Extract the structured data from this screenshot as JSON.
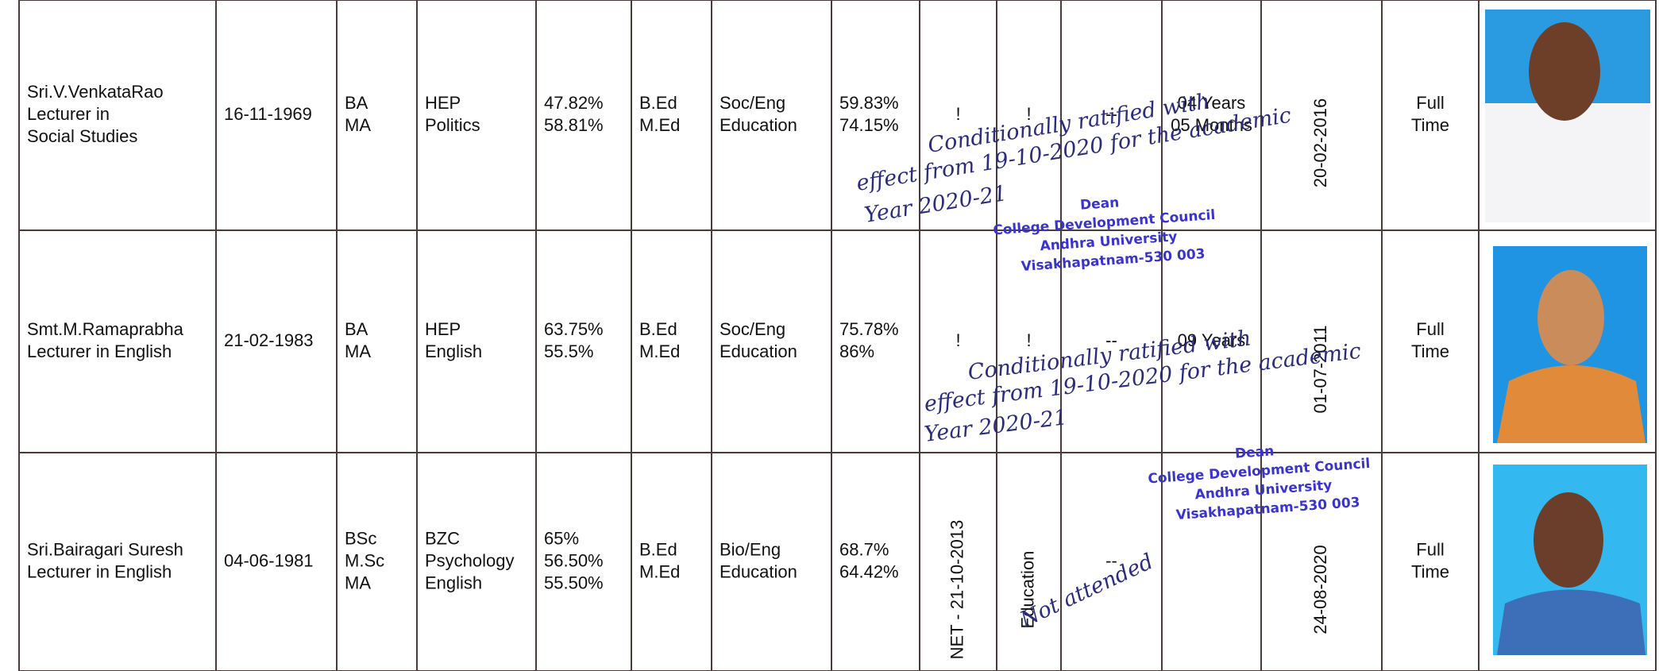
{
  "table": {
    "rows": [
      {
        "name": [
          "Sri.V.VenkataRao",
          "Lecturer in",
          "Social Studies"
        ],
        "dob": "16-11-1969",
        "degrees": [
          "BA",
          "MA"
        ],
        "subjects": [
          "HEP",
          "Politics"
        ],
        "percentages": [
          "47.82%",
          "58.81%"
        ],
        "training": [
          "B.Ed",
          "M.Ed"
        ],
        "methodology": [
          "Soc/Eng",
          "Education"
        ],
        "training_percentages": [
          "59.83%",
          "74.15%"
        ],
        "qualification": "!",
        "subject": "!",
        "remark": "--",
        "experience": [
          "04 Years",
          "05 Months"
        ],
        "date": "20-02-2016",
        "status": [
          "Full",
          "Time"
        ]
      },
      {
        "name": [
          "Smt.M.Ramaprabha",
          "Lecturer in English"
        ],
        "dob": "21-02-1983",
        "degrees": [
          "BA",
          "MA"
        ],
        "subjects": [
          "HEP",
          "English"
        ],
        "percentages": [
          "63.75%",
          "55.5%"
        ],
        "training": [
          "B.Ed",
          "M.Ed"
        ],
        "methodology": [
          "Soc/Eng",
          "Education"
        ],
        "training_percentages": [
          "75.78%",
          "86%"
        ],
        "qualification": "!",
        "subject": "!",
        "remark": "--",
        "experience": [
          "09 Years"
        ],
        "date": "01-07-2011",
        "status": [
          "Full",
          "Time"
        ]
      },
      {
        "name": [
          "Sri.Bairagari Suresh",
          "Lecturer in English"
        ],
        "dob": "04-06-1981",
        "degrees": [
          "BSc",
          "M.Sc",
          "MA"
        ],
        "subjects": [
          "BZC",
          "Psychology",
          "English"
        ],
        "percentages": [
          "65%",
          "56.50%",
          "55.50%"
        ],
        "training": [
          "B.Ed",
          "M.Ed"
        ],
        "methodology": [
          "Bio/Eng",
          "Education"
        ],
        "training_percentages": [
          "68.7%",
          "64.42%"
        ],
        "qualification": "NET - 21-10-2013",
        "subject": "Education",
        "remark": "--",
        "date": "24-08-2020",
        "status": [
          "Full",
          "Time"
        ]
      }
    ]
  },
  "annotations": [
    {
      "lines": [
        "Conditionally ratified with",
        "effect from 19-10-2020 for the academic",
        "Year 2020-21"
      ]
    },
    {
      "lines": [
        "Conditionally ratified with",
        "effect from 19-10-2020 for the academic",
        "Year 2020-21"
      ]
    },
    {
      "lines": [
        "Not attended"
      ]
    }
  ],
  "stamps": [
    {
      "lines": [
        "Dean",
        "College Development Council",
        "Andhra University",
        "Visakhapatnam-530 003"
      ]
    },
    {
      "lines": [
        "Dean",
        "College Development Council",
        "Andhra University",
        "Visakhapatnam-530 003"
      ]
    }
  ]
}
